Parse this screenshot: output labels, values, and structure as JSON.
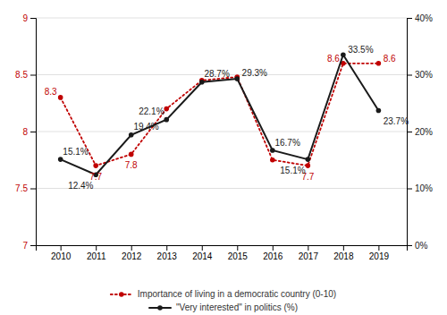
{
  "chart_data": {
    "type": "line",
    "x": [
      2010,
      2011,
      2012,
      2013,
      2014,
      2015,
      2016,
      2017,
      2018,
      2019
    ],
    "xlim": [
      2009.3,
      2019.8
    ],
    "xticks": [
      2010,
      2011,
      2012,
      2013,
      2014,
      2015,
      2016,
      2017,
      2018,
      2019
    ],
    "ylim": [
      7,
      9
    ],
    "yticks": [
      7,
      7.5,
      8,
      8.5,
      9
    ],
    "y2lim": [
      0,
      40
    ],
    "y2ticks": [
      {
        "value": 0,
        "label": "0%"
      },
      {
        "value": 10,
        "label": "10%"
      },
      {
        "value": 20,
        "label": "20%"
      },
      {
        "value": 30,
        "label": "30%"
      },
      {
        "value": 40,
        "label": "40%"
      }
    ],
    "grid": true,
    "legend": "bottom",
    "data_labels": true,
    "series": [
      {
        "name": "Importance of living in a democratic country (0-10)",
        "color": "#c00000",
        "line_style": "dotted",
        "marker": "circle",
        "values": [
          8.3,
          7.7,
          7.8,
          8.2,
          8.45,
          8.48,
          7.75,
          7.7,
          8.6,
          8.6
        ],
        "value_labels": [
          "8.3",
          "7.7",
          "7.8",
          null,
          null,
          null,
          null,
          "7.7",
          "8.6",
          "8.6"
        ]
      },
      {
        "name": "\"Very interested\" in politics (%)",
        "color": "#1a1a1a",
        "line_style": "solid",
        "marker": "circle",
        "axis": "y2",
        "values": [
          15.1,
          12.4,
          19.4,
          22.1,
          28.7,
          29.3,
          16.7,
          15.1,
          33.5,
          23.7
        ],
        "value_labels": [
          "15.1%",
          "12.4%",
          "19.4%",
          "22.1%",
          "28.7%",
          "29.3%",
          "16.7%",
          "15.1%",
          "33.5%",
          "23.7%"
        ]
      }
    ]
  }
}
